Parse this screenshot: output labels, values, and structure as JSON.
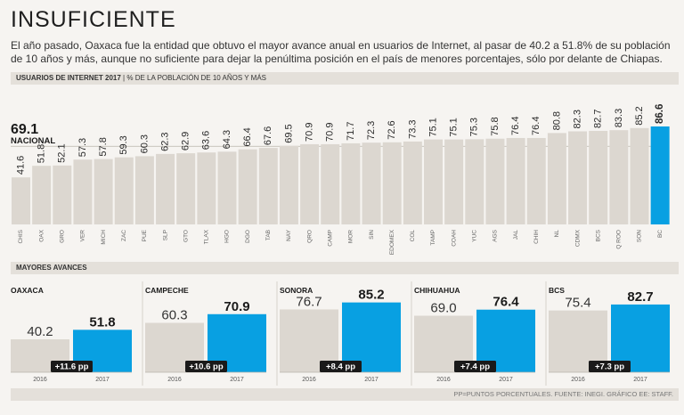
{
  "header": {
    "title": "INSUFICIENTE",
    "lede": "El año pasado, Oaxaca fue la entidad que obtuvo el mayor avance anual en usuarios de Internet, al pasar de 40.2 a 51.8% de su población de 10 años y más, aunque no suficiente para dejar la penúltima posición en el país de menores porcentajes, sólo por delante de Chiapas."
  },
  "section1": {
    "title": "USUARIOS DE INTERNET 2017",
    "subtitle": "% DE LA POBLACIÓN DE 10 AÑOS Y MÁS"
  },
  "section2": {
    "title": "MAYORES AVANCES"
  },
  "footer": {
    "source": "PP=PUNTOS PORCENTUALES. FUENTE: INEGI. GRÁFICO EE: STAFF."
  },
  "colors": {
    "bar": "#dcd7d0",
    "highlight": "#08a0e2",
    "badge": "#1a1a1a"
  },
  "chart_data": [
    {
      "type": "bar",
      "title": "USUARIOS DE INTERNET 2017",
      "ylabel": "% de la población de 10 años y más",
      "ylim": [
        0,
        100
      ],
      "reference": {
        "value": 69.1,
        "value_label": "69.1",
        "label": "NACIONAL"
      },
      "highlight": "BC",
      "categories": [
        "CHIS",
        "OAX",
        "GRO",
        "VER",
        "MICH",
        "ZAC",
        "PUE",
        "SLP",
        "GTO",
        "TLAX",
        "HGO",
        "DGO",
        "TAB",
        "NAY",
        "QRO",
        "CAMP",
        "MOR",
        "SIN",
        "EDOMEX",
        "COL",
        "TAMP",
        "COAH",
        "YUC",
        "AGS",
        "JAL",
        "CHIH",
        "NL",
        "CDMX",
        "BCS",
        "Q ROO",
        "SON",
        "BC"
      ],
      "values": [
        41.6,
        51.8,
        52.1,
        57.3,
        57.8,
        59.3,
        60.3,
        62.3,
        62.9,
        63.6,
        64.3,
        66.4,
        67.6,
        69.5,
        70.9,
        70.9,
        71.7,
        72.3,
        72.6,
        73.3,
        75.1,
        75.1,
        75.3,
        75.8,
        76.4,
        76.4,
        80.8,
        82.3,
        82.7,
        83.3,
        85.2,
        86.6
      ],
      "value_labels": [
        "41.6",
        "51.8",
        "52.1",
        "57.3",
        "57.8",
        "59.3",
        "60.3",
        "62.3",
        "62.9",
        "63.6",
        "64.3",
        "66.4",
        "67.6",
        "69.5",
        "70.9",
        "70.9",
        "71.7",
        "72.3",
        "72.6",
        "73.3",
        "75.1",
        "75.1",
        "75.3",
        "75.8",
        "76.4",
        "76.4",
        "80.8",
        "82.3",
        "82.7",
        "83.3",
        "85.2",
        "86.6"
      ]
    },
    {
      "type": "bar",
      "title": "MAYORES AVANCES",
      "categories": [
        "2016",
        "2017"
      ],
      "ylim": [
        0,
        100
      ],
      "panels": [
        {
          "name": "OAXACA",
          "values": [
            40.2,
            51.8
          ],
          "value_labels": [
            "40.2",
            "51.8"
          ],
          "change": "+11.6 pp"
        },
        {
          "name": "CAMPECHE",
          "values": [
            60.3,
            70.9
          ],
          "value_labels": [
            "60.3",
            "70.9"
          ],
          "change": "+10.6 pp"
        },
        {
          "name": "SONORA",
          "values": [
            76.7,
            85.2
          ],
          "value_labels": [
            "76.7",
            "85.2"
          ],
          "change": "+8.4 pp"
        },
        {
          "name": "CHIHUAHUA",
          "values": [
            69.0,
            76.4
          ],
          "value_labels": [
            "69.0",
            "76.4"
          ],
          "change": "+7.4 pp"
        },
        {
          "name": "BCS",
          "values": [
            75.4,
            82.7
          ],
          "value_labels": [
            "75.4",
            "82.7"
          ],
          "change": "+7.3 pp"
        }
      ]
    }
  ]
}
